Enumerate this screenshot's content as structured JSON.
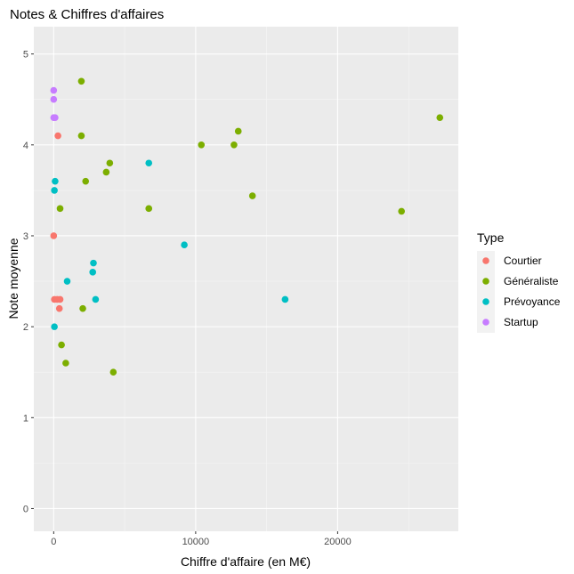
{
  "chart_data": {
    "type": "scatter",
    "title": "Notes & Chiffres d'affaires",
    "xlabel": "Chiffre d'affaire (en M€)",
    "ylabel": "Note moyenne",
    "xlim": [
      -1400,
      28500
    ],
    "ylim": [
      -0.25,
      5.3
    ],
    "x_ticks": [
      0,
      10000,
      20000
    ],
    "x_tick_labels": [
      "0",
      "10000",
      "20000"
    ],
    "y_ticks": [
      0,
      1,
      2,
      3,
      4,
      5
    ],
    "y_tick_labels": [
      "0",
      "1",
      "2",
      "3",
      "4",
      "5"
    ],
    "grid": true,
    "background": "#ebebeb",
    "legend": {
      "title": "Type",
      "placement": "right"
    },
    "series": [
      {
        "name": "Courtier",
        "color": "#f8766d",
        "points": [
          {
            "x": 300,
            "y": 4.1
          },
          {
            "x": 0,
            "y": 3.0
          },
          {
            "x": 50,
            "y": 2.3
          },
          {
            "x": 250,
            "y": 2.3
          },
          {
            "x": 450,
            "y": 2.3
          },
          {
            "x": 400,
            "y": 2.2
          }
        ]
      },
      {
        "name": "Généraliste",
        "color": "#7cae00",
        "points": [
          {
            "x": 1950,
            "y": 4.7
          },
          {
            "x": 1950,
            "y": 4.1
          },
          {
            "x": 3950,
            "y": 3.8
          },
          {
            "x": 3700,
            "y": 3.7
          },
          {
            "x": 2250,
            "y": 3.6
          },
          {
            "x": 450,
            "y": 3.3
          },
          {
            "x": 6700,
            "y": 3.3
          },
          {
            "x": 10400,
            "y": 4.0
          },
          {
            "x": 12700,
            "y": 4.0
          },
          {
            "x": 13000,
            "y": 4.15
          },
          {
            "x": 14000,
            "y": 3.44
          },
          {
            "x": 24500,
            "y": 3.27
          },
          {
            "x": 27200,
            "y": 4.3
          },
          {
            "x": 2050,
            "y": 2.2
          },
          {
            "x": 550,
            "y": 1.8
          },
          {
            "x": 850,
            "y": 1.6
          },
          {
            "x": 4200,
            "y": 1.5
          }
        ]
      },
      {
        "name": "Prévoyance",
        "color": "#00bfc4",
        "points": [
          {
            "x": 6700,
            "y": 3.8
          },
          {
            "x": 100,
            "y": 3.6
          },
          {
            "x": 50,
            "y": 3.5
          },
          {
            "x": 9200,
            "y": 2.9
          },
          {
            "x": 2800,
            "y": 2.7
          },
          {
            "x": 2750,
            "y": 2.6
          },
          {
            "x": 950,
            "y": 2.5
          },
          {
            "x": 2950,
            "y": 2.3
          },
          {
            "x": 16300,
            "y": 2.3
          },
          {
            "x": 50,
            "y": 2.0
          }
        ]
      },
      {
        "name": "Startup",
        "color": "#c77cff",
        "points": [
          {
            "x": 0,
            "y": 4.6
          },
          {
            "x": 0,
            "y": 4.5
          },
          {
            "x": 0,
            "y": 4.3
          },
          {
            "x": 100,
            "y": 4.3
          }
        ]
      }
    ]
  }
}
